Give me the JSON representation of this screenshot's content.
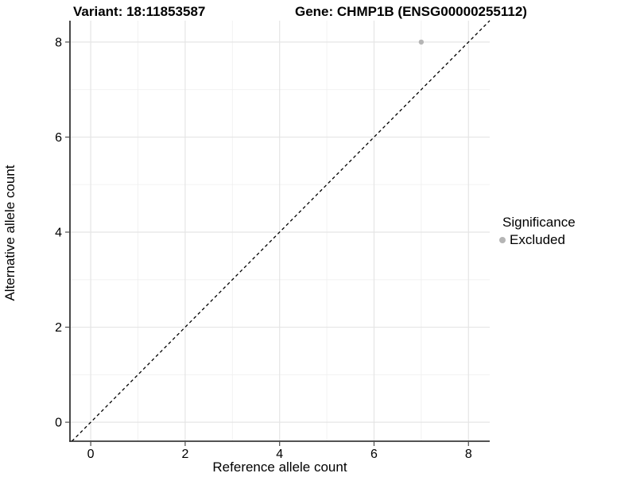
{
  "chart_data": {
    "type": "scatter",
    "title_left": "Variant: 18:11853587",
    "title_right": "Gene: CHMP1B (ENSG00000255112)",
    "xlabel": "Reference allele count",
    "ylabel": "Alternative allele count",
    "xlim": [
      -0.44,
      8.45
    ],
    "ylim": [
      -0.4,
      8.45
    ],
    "x_ticks": [
      0,
      2,
      4,
      6,
      8
    ],
    "y_ticks": [
      0,
      2,
      4,
      6,
      8
    ],
    "x_minor_ticks": [
      1,
      3,
      5,
      7
    ],
    "y_minor_ticks": [
      1,
      3,
      5,
      7
    ],
    "grid": "major-and-minor",
    "identity_line": {
      "slope": 1,
      "intercept": 0,
      "style": "dashed",
      "color": "#000000"
    },
    "series": [
      {
        "name": "Excluded",
        "points": [
          {
            "x": 7,
            "y": 8
          }
        ]
      }
    ],
    "legend": {
      "title": "Significance",
      "position": "right",
      "items": [
        {
          "label": "Excluded",
          "color": "#b5b5b5"
        }
      ]
    },
    "colors": {
      "point": "#b5b5b5",
      "grid_major": "#e5e5e5",
      "grid_minor": "#f0f0f0",
      "axis_line": "#1a1a1a",
      "tick_mark": "#4d4d4d",
      "text": "#000000",
      "background": "#ffffff"
    }
  }
}
